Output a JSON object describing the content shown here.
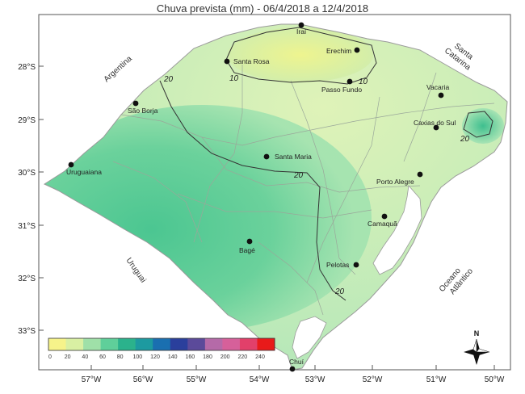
{
  "map": {
    "title": "Chuva prevista (mm) - 06/4/2018 a 12/4/2018",
    "lat_labels": [
      "28°S",
      "29°S",
      "30°S",
      "31°S",
      "32°S",
      "33°S"
    ],
    "lon_labels": [
      "57°W",
      "56°W",
      "55°W",
      "54°W",
      "53°W",
      "52°W",
      "51°W",
      "50°W"
    ],
    "regions": {
      "argentina": "Argentina",
      "uruguai": "Uruguai",
      "santa_catarina": [
        "Santa",
        "Catarina"
      ],
      "oceano": [
        "Oceano",
        "Atlântico"
      ]
    },
    "cities": [
      {
        "name": "Iraí"
      },
      {
        "name": "Santa Rosa"
      },
      {
        "name": "Erechim"
      },
      {
        "name": "Passo Fundo"
      },
      {
        "name": "Vacaria"
      },
      {
        "name": "São Borja"
      },
      {
        "name": "Caxias do Sul"
      },
      {
        "name": "Santa Maria"
      },
      {
        "name": "Uruguaiana"
      },
      {
        "name": "Porto Alegre"
      },
      {
        "name": "Camaquã"
      },
      {
        "name": "Bagé"
      },
      {
        "name": "Pelotas"
      },
      {
        "name": "Chuí"
      }
    ],
    "contour_labels": [
      "10",
      "10",
      "20",
      "20",
      "20",
      "20"
    ],
    "legend": {
      "ticks": [
        "0",
        "20",
        "40",
        "60",
        "80",
        "100",
        "120",
        "140",
        "160",
        "180",
        "200",
        "220",
        "240"
      ],
      "colors": [
        "#f6f38a",
        "#d9f0a3",
        "#9fe0a8",
        "#5fcf9a",
        "#2bb28c",
        "#1d9aa0",
        "#1a6fb0",
        "#2a3f9c",
        "#5b4a9a",
        "#b56aa8",
        "#d6609a",
        "#e2406a",
        "#e81a1a"
      ]
    },
    "north_label": "N"
  }
}
